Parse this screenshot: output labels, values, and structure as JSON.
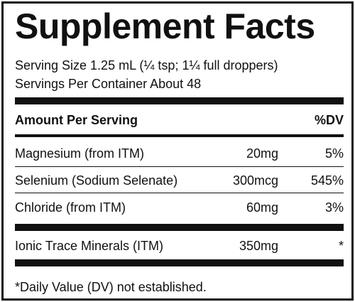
{
  "label": {
    "title": "Supplement Facts",
    "serving_size": "Serving Size 1.25 mL (¼ tsp; 1¼ full droppers)",
    "servings_per_container": "Servings Per Container About 48",
    "header": {
      "amount_per_serving": "Amount Per Serving",
      "dv": "%DV"
    },
    "nutrients": [
      {
        "name": "Magnesium (from ITM)",
        "amount": "20mg",
        "dv": "5%"
      },
      {
        "name": "Selenium (Sodium Selenate)",
        "amount": "300mcg",
        "dv": "545%"
      },
      {
        "name": "Chloride (from ITM)",
        "amount": "60mg",
        "dv": "3%"
      }
    ],
    "other": [
      {
        "name": "Ionic Trace Minerals (ITM)",
        "amount": "350mg",
        "dv": "*"
      }
    ],
    "footnote": "*Daily Value (DV) not established."
  }
}
